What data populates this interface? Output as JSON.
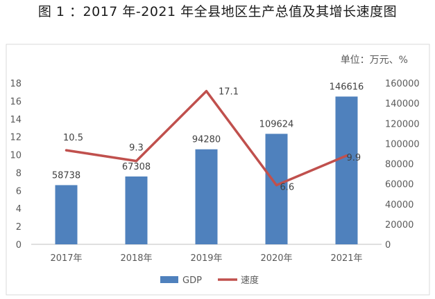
{
  "figure": {
    "title": "图 1 ：2017 年-2021 年全县地区生产总值及其增长速度图"
  },
  "chart_data": {
    "type": "bar",
    "unit_note": "单位：万元、%",
    "categories": [
      "2017年",
      "2018年",
      "2019年",
      "2020年",
      "2021年"
    ],
    "series": [
      {
        "name": "GDP",
        "type": "bar",
        "axis": "right",
        "color": "#4f81bd",
        "values": [
          58738,
          67308,
          94280,
          109624,
          146616
        ]
      },
      {
        "name": "速度",
        "type": "line",
        "axis": "left",
        "color": "#c0504d",
        "values": [
          10.5,
          9.3,
          17.1,
          6.6,
          9.9
        ]
      }
    ],
    "y_left": {
      "ylim": [
        0,
        18
      ],
      "ticks": [
        "0",
        "2",
        "4",
        "6",
        "8",
        "10",
        "12",
        "14",
        "16",
        "18"
      ]
    },
    "y_right": {
      "ylim": [
        0,
        160000
      ],
      "ticks": [
        "0",
        "20000",
        "40000",
        "60000",
        "80000",
        "100000",
        "120000",
        "140000",
        "160000"
      ]
    },
    "grid": false,
    "legend": "bottom"
  }
}
